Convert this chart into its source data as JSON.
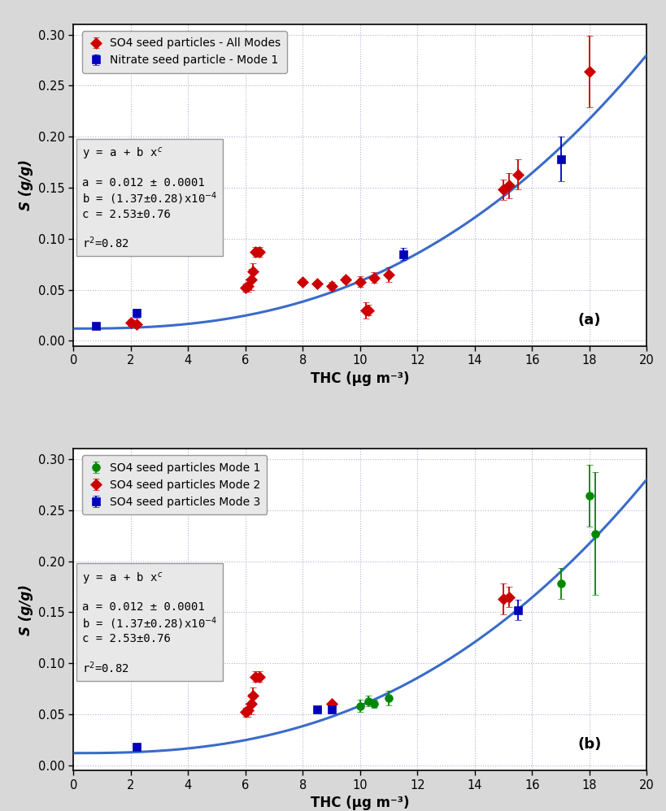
{
  "title_a": "(a)",
  "title_b": "(b)",
  "xlabel": "THC (μg m⁻³)",
  "ylabel": "S (g/g)",
  "xlim": [
    0,
    20
  ],
  "ylim": [
    -0.005,
    0.31
  ],
  "fit_a": 0.012,
  "fit_b": 0.000137,
  "fit_c": 2.53,
  "curve_color": "#3a6bc9",
  "bg_color": "#d8d8d8",
  "plot_bg": "#ffffff",
  "legend_bg": "#e8e8e8",
  "eq_bg": "#e8e8e8",
  "red_color": "#cc0000",
  "blue_color": "#0000bb",
  "green_color": "#008800",
  "grid_color": "#aaaacc",
  "panel_a": {
    "red_x": [
      2.0,
      2.2,
      6.0,
      6.1,
      6.2,
      6.25,
      6.35,
      6.5,
      8.0,
      8.5,
      9.0,
      9.5,
      10.0,
      10.2,
      10.3,
      10.5,
      11.0,
      15.0,
      15.2,
      15.5,
      18.0
    ],
    "red_y": [
      0.018,
      0.016,
      0.052,
      0.054,
      0.06,
      0.068,
      0.087,
      0.087,
      0.058,
      0.056,
      0.054,
      0.06,
      0.058,
      0.03,
      0.03,
      0.062,
      0.065,
      0.148,
      0.152,
      0.163,
      0.264
    ],
    "red_yerr": [
      0.003,
      0.002,
      0.004,
      0.006,
      0.01,
      0.008,
      0.005,
      0.005,
      0.003,
      0.002,
      0.004,
      0.003,
      0.005,
      0.008,
      0.005,
      0.005,
      0.007,
      0.01,
      0.012,
      0.015,
      0.035
    ],
    "blue_x": [
      0.8,
      2.2,
      11.5,
      17.0
    ],
    "blue_y": [
      0.015,
      0.027,
      0.085,
      0.178
    ],
    "blue_yerr": [
      0.003,
      0.004,
      0.006,
      0.022
    ]
  },
  "panel_b": {
    "green_x": [
      10.0,
      10.3,
      10.5,
      11.0,
      17.0,
      18.0,
      18.2
    ],
    "green_y": [
      0.058,
      0.063,
      0.06,
      0.066,
      0.178,
      0.264,
      0.227
    ],
    "green_yerr": [
      0.006,
      0.005,
      0.004,
      0.007,
      0.015,
      0.03,
      0.06
    ],
    "red_x": [
      6.0,
      6.1,
      6.2,
      6.25,
      6.35,
      6.5,
      9.0,
      15.0,
      15.2
    ],
    "red_y": [
      0.052,
      0.054,
      0.06,
      0.068,
      0.087,
      0.087,
      0.06,
      0.163,
      0.165
    ],
    "red_yerr": [
      0.004,
      0.006,
      0.01,
      0.008,
      0.005,
      0.005,
      0.003,
      0.015,
      0.01
    ],
    "blue_x": [
      2.2,
      8.5,
      9.0,
      15.5
    ],
    "blue_y": [
      0.018,
      0.055,
      0.055,
      0.152
    ],
    "blue_yerr": [
      0.003,
      0.003,
      0.003,
      0.01
    ]
  }
}
